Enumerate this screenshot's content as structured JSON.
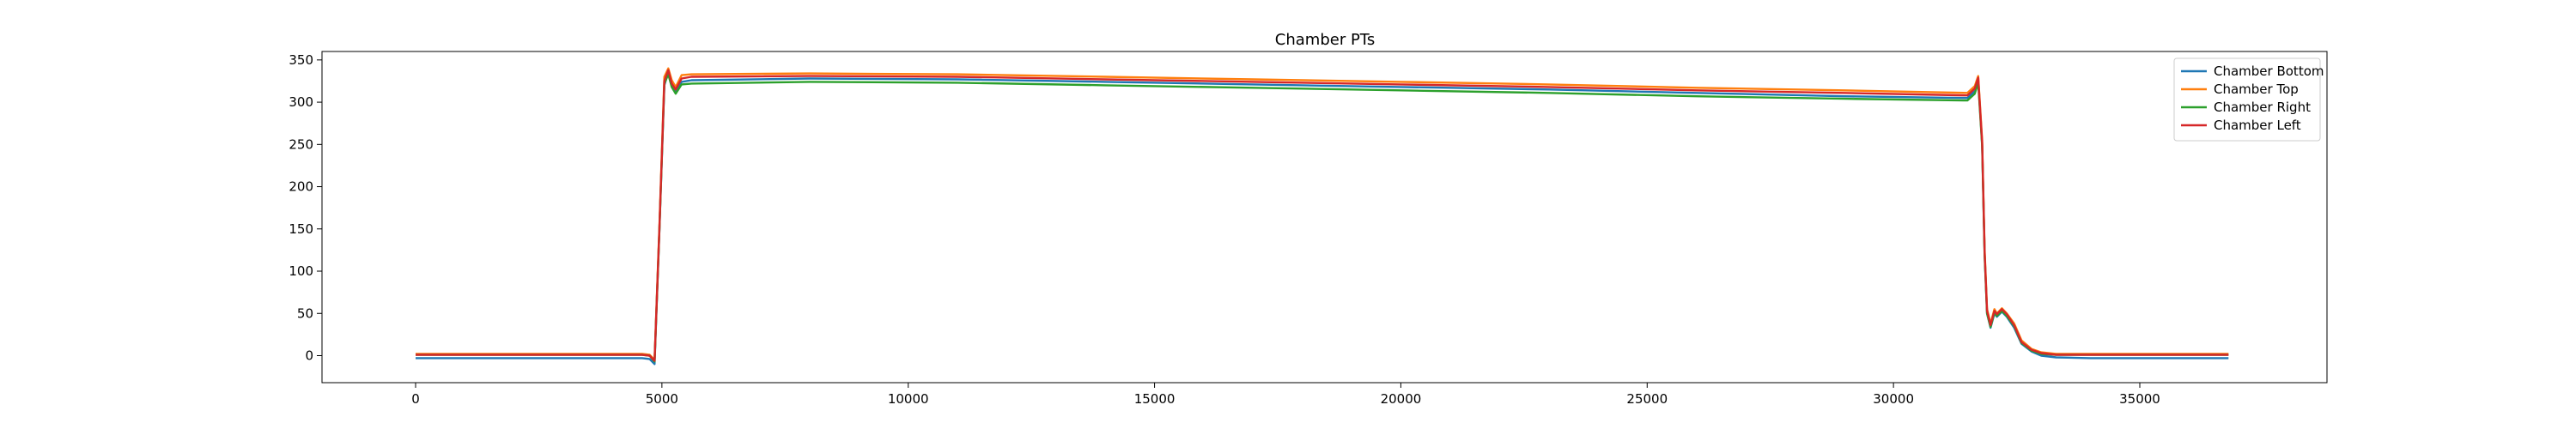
{
  "chart_data": {
    "type": "line",
    "title": "Chamber PTs",
    "xlabel": "",
    "ylabel": "",
    "xlim": [
      -1900,
      38800
    ],
    "ylim": [
      -32,
      360
    ],
    "x_ticks": [
      0,
      5000,
      10000,
      15000,
      20000,
      25000,
      30000,
      35000
    ],
    "y_ticks": [
      0,
      50,
      100,
      150,
      200,
      250,
      300,
      350
    ],
    "grid": false,
    "legend_position": "upper-right",
    "series": [
      {
        "name": "Chamber Bottom",
        "color": "#1f77b4",
        "points": [
          [
            0,
            -3
          ],
          [
            4600,
            -3
          ],
          [
            4750,
            -4
          ],
          [
            4850,
            -10
          ],
          [
            4950,
            150
          ],
          [
            5050,
            320
          ],
          [
            5130,
            336
          ],
          [
            5200,
            320
          ],
          [
            5280,
            312
          ],
          [
            5400,
            324
          ],
          [
            5600,
            326
          ],
          [
            8000,
            328
          ],
          [
            11000,
            327
          ],
          [
            14000,
            324
          ],
          [
            17000,
            321
          ],
          [
            20000,
            318
          ],
          [
            23000,
            315
          ],
          [
            26000,
            311
          ],
          [
            29000,
            307
          ],
          [
            31500,
            305
          ],
          [
            31650,
            313
          ],
          [
            31720,
            326
          ],
          [
            31800,
            250
          ],
          [
            31850,
            120
          ],
          [
            31900,
            50
          ],
          [
            31970,
            33
          ],
          [
            32050,
            50
          ],
          [
            32100,
            46
          ],
          [
            32200,
            52
          ],
          [
            32300,
            46
          ],
          [
            32450,
            33
          ],
          [
            32600,
            14
          ],
          [
            32800,
            5
          ],
          [
            33000,
            0
          ],
          [
            33300,
            -2
          ],
          [
            34000,
            -3
          ],
          [
            36800,
            -3
          ]
        ]
      },
      {
        "name": "Chamber Top",
        "color": "#ff7f0e",
        "points": [
          [
            0,
            2
          ],
          [
            4600,
            2
          ],
          [
            4750,
            1
          ],
          [
            4850,
            -5
          ],
          [
            4950,
            155
          ],
          [
            5050,
            330
          ],
          [
            5130,
            340
          ],
          [
            5200,
            326
          ],
          [
            5280,
            318
          ],
          [
            5400,
            332
          ],
          [
            5600,
            333
          ],
          [
            8000,
            334
          ],
          [
            11000,
            333
          ],
          [
            14000,
            330
          ],
          [
            17000,
            327
          ],
          [
            20000,
            324
          ],
          [
            23000,
            321
          ],
          [
            26000,
            317
          ],
          [
            29000,
            314
          ],
          [
            31500,
            311
          ],
          [
            31650,
            319
          ],
          [
            31720,
            331
          ],
          [
            31800,
            255
          ],
          [
            31850,
            125
          ],
          [
            31900,
            55
          ],
          [
            31970,
            38
          ],
          [
            32050,
            55
          ],
          [
            32100,
            50
          ],
          [
            32200,
            56
          ],
          [
            32300,
            50
          ],
          [
            32450,
            38
          ],
          [
            32600,
            18
          ],
          [
            32800,
            8
          ],
          [
            33000,
            4
          ],
          [
            33300,
            2
          ],
          [
            34000,
            2
          ],
          [
            36800,
            2
          ]
        ]
      },
      {
        "name": "Chamber Right",
        "color": "#2ca02c",
        "points": [
          [
            0,
            1
          ],
          [
            4600,
            1
          ],
          [
            4750,
            0
          ],
          [
            4850,
            -7
          ],
          [
            4950,
            150
          ],
          [
            5050,
            322
          ],
          [
            5130,
            333
          ],
          [
            5200,
            318
          ],
          [
            5280,
            310
          ],
          [
            5400,
            321
          ],
          [
            5600,
            322
          ],
          [
            8000,
            324
          ],
          [
            11000,
            323
          ],
          [
            14000,
            320
          ],
          [
            17000,
            317
          ],
          [
            20000,
            314
          ],
          [
            23000,
            311
          ],
          [
            26000,
            307
          ],
          [
            29000,
            304
          ],
          [
            31500,
            302
          ],
          [
            31650,
            310
          ],
          [
            31720,
            323
          ],
          [
            31800,
            248
          ],
          [
            31850,
            118
          ],
          [
            31900,
            50
          ],
          [
            31970,
            34
          ],
          [
            32050,
            51
          ],
          [
            32100,
            47
          ],
          [
            32200,
            53
          ],
          [
            32300,
            47
          ],
          [
            32450,
            35
          ],
          [
            32600,
            15
          ],
          [
            32800,
            6
          ],
          [
            33000,
            2
          ],
          [
            33300,
            1
          ],
          [
            34000,
            1
          ],
          [
            36800,
            1
          ]
        ]
      },
      {
        "name": "Chamber Left",
        "color": "#d62728",
        "points": [
          [
            0,
            1
          ],
          [
            4600,
            1
          ],
          [
            4750,
            0
          ],
          [
            4850,
            -6
          ],
          [
            4950,
            152
          ],
          [
            5050,
            325
          ],
          [
            5130,
            338
          ],
          [
            5200,
            322
          ],
          [
            5280,
            315
          ],
          [
            5400,
            328
          ],
          [
            5600,
            330
          ],
          [
            8000,
            331
          ],
          [
            11000,
            330
          ],
          [
            14000,
            327
          ],
          [
            17000,
            324
          ],
          [
            20000,
            321
          ],
          [
            23000,
            318
          ],
          [
            26000,
            314
          ],
          [
            29000,
            311
          ],
          [
            31500,
            308
          ],
          [
            31650,
            316
          ],
          [
            31720,
            329
          ],
          [
            31800,
            252
          ],
          [
            31850,
            122
          ],
          [
            31900,
            53
          ],
          [
            31970,
            36
          ],
          [
            32050,
            53
          ],
          [
            32100,
            49
          ],
          [
            32200,
            55
          ],
          [
            32300,
            49
          ],
          [
            32450,
            36
          ],
          [
            32600,
            16
          ],
          [
            32800,
            7
          ],
          [
            33000,
            3
          ],
          [
            33300,
            1
          ],
          [
            34000,
            1
          ],
          [
            36800,
            1
          ]
        ]
      }
    ]
  }
}
